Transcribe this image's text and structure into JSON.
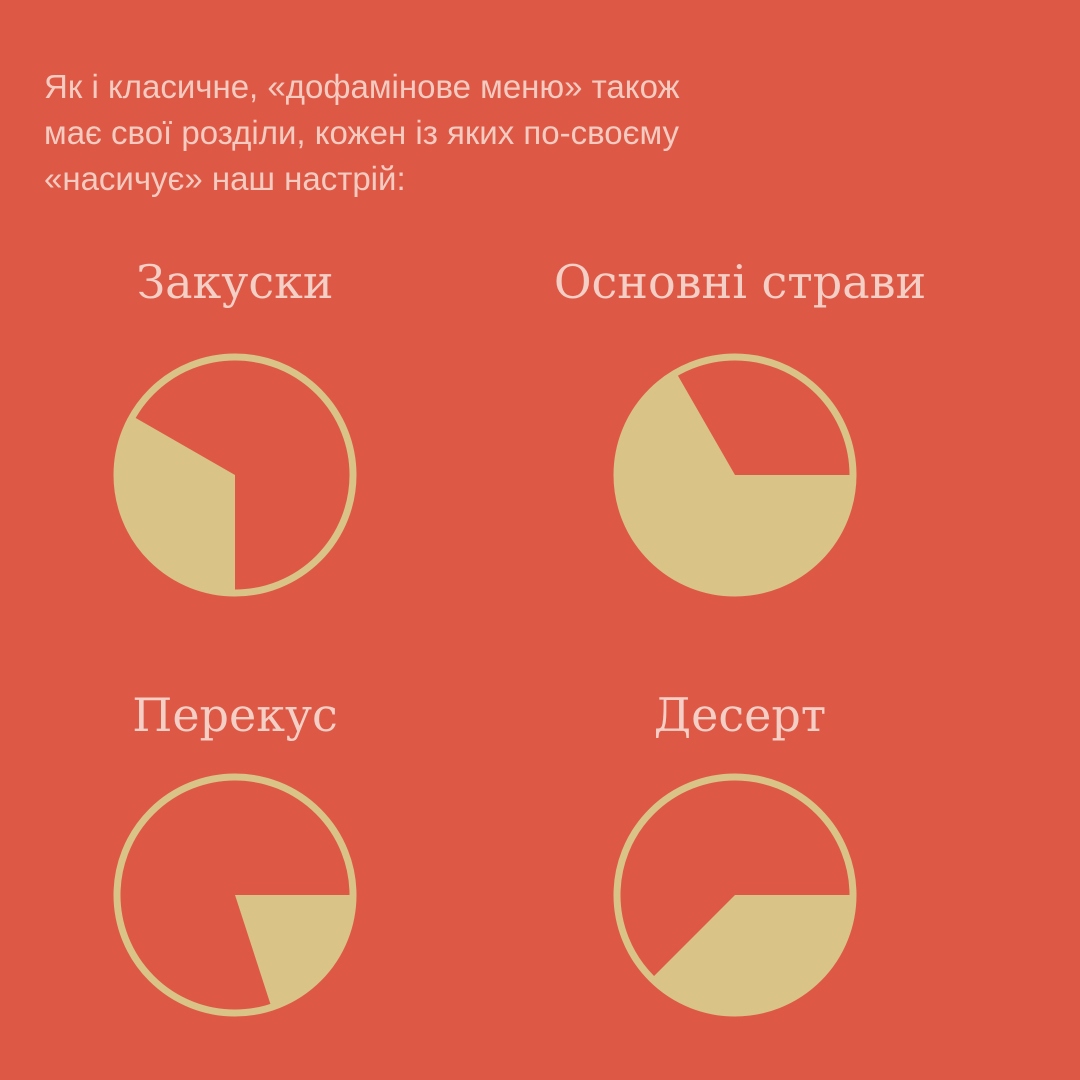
{
  "intro": {
    "lines": [
      "Як і класичне, «дофамінове меню» також",
      "має свої розділи, кожен із яких по-своєму",
      "«насичує» наш настрій:"
    ]
  },
  "colors": {
    "background": "#DE5846",
    "fill": "#D9C387",
    "text": "#F4CBC0"
  },
  "sections": [
    {
      "title": "Закуски",
      "fill_fraction": 0.333,
      "fill_start_deg": 180
    },
    {
      "title": "Основні страви",
      "fill_fraction": 0.667,
      "fill_start_deg": 90
    },
    {
      "title": "Перекус",
      "fill_fraction": 0.2,
      "fill_start_deg": 90
    },
    {
      "title": "Десерт",
      "fill_fraction": 0.375,
      "fill_start_deg": 90
    }
  ]
}
